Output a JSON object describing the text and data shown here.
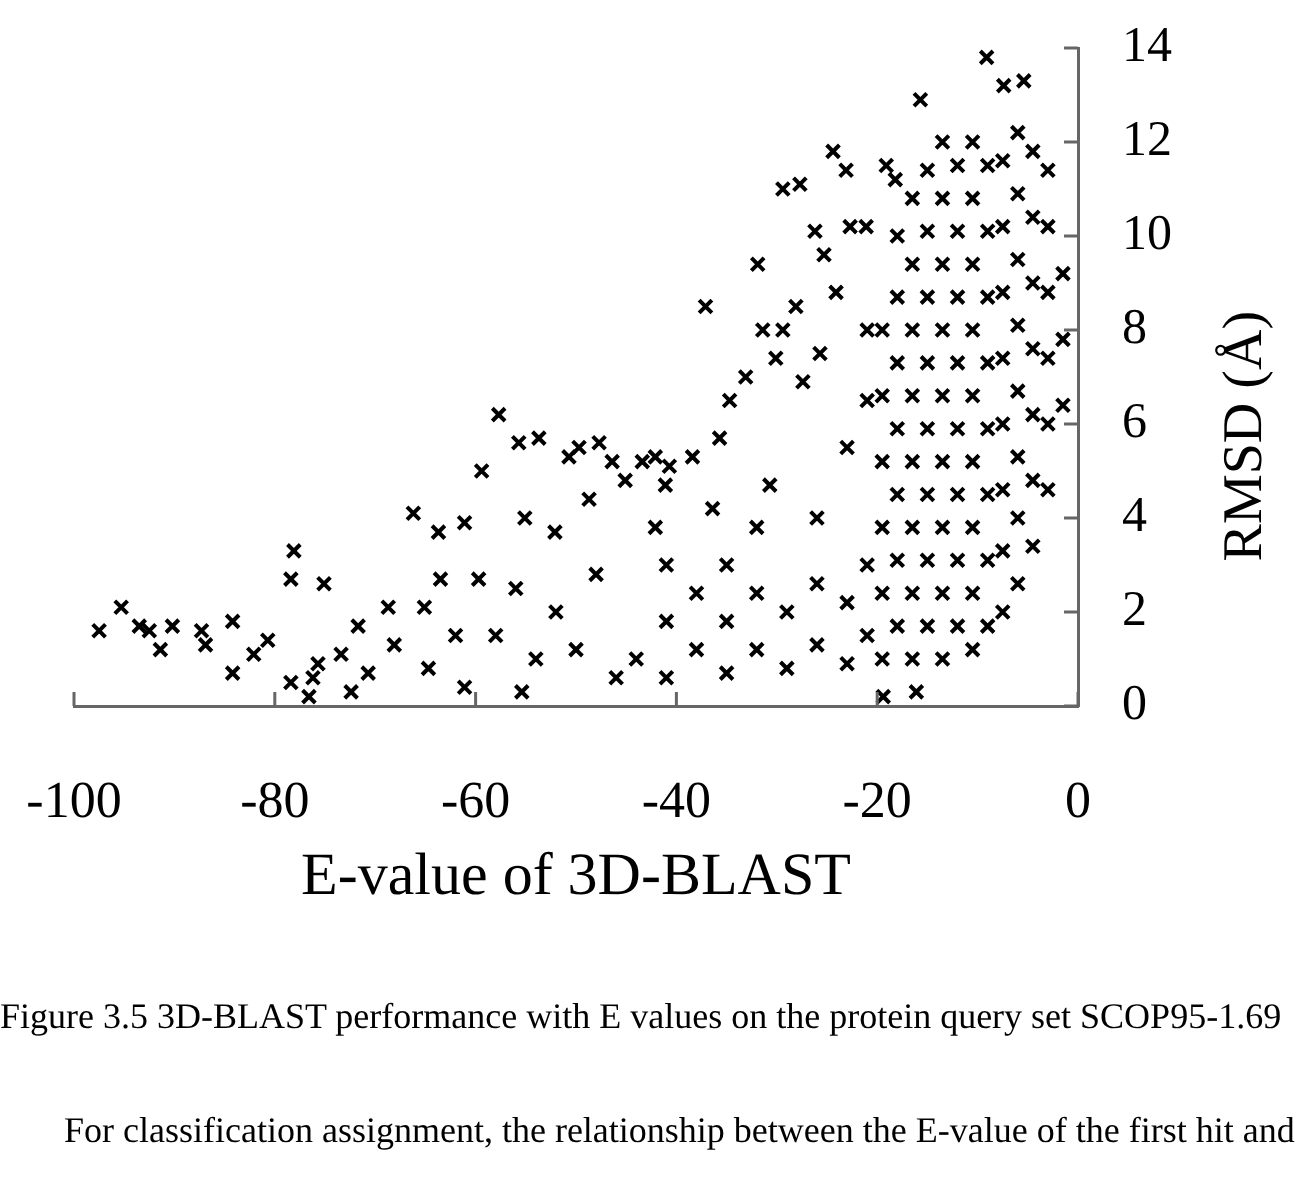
{
  "chart_data": {
    "type": "scatter",
    "xlabel": "E-value of 3D-BLAST",
    "ylabel": "RMSD (Å)",
    "xlim": [
      -100,
      0
    ],
    "xticks": [
      -100,
      -80,
      -60,
      -40,
      -20,
      0
    ],
    "ylim": [
      0,
      14
    ],
    "yticks": [
      0,
      2,
      4,
      6,
      8,
      10,
      12,
      14
    ],
    "marker": "cross",
    "color": "#000000",
    "x": [
      -97.5,
      -95.3,
      -93.5,
      -92.5,
      -91.4,
      -90.2,
      -87.3,
      -86.9,
      -84.2,
      -84.2,
      -82.1,
      -80.7,
      -78.4,
      -78.1,
      -78.4,
      -76.6,
      -76.2,
      -75.7,
      -75.1,
      -73.4,
      -72.4,
      -71.7,
      -70.7,
      -68.7,
      -68.1,
      -66.2,
      -65.1,
      -63.7,
      -63.5,
      -64.7,
      -61.1,
      -61.1,
      -59.7,
      -59.4,
      -57.7,
      -55.7,
      -55.1,
      -53.7,
      -55.4,
      -52.1,
      -50.7,
      -49.7,
      -48.7,
      -47.7,
      -46.4,
      -45.1,
      -43.4,
      -42.1,
      -41.1,
      -58,
      -56,
      -54,
      -52,
      -50,
      -48,
      -46,
      -62,
      -9.1,
      -15.7,
      -7.4,
      -5.4,
      -24.4,
      -23.1,
      -29.4,
      -27.7,
      -19.1,
      -18.2,
      -26.2,
      -25.3,
      -22.7,
      -21.1,
      -31.9,
      -37.1,
      -31.4,
      -29.4,
      -28.1,
      -25.7,
      -24.1,
      -30.1,
      -33.1,
      -34.7,
      -27.4,
      -35.7,
      -30.7,
      -36.4,
      -40.7,
      -38.4,
      -42.1,
      -19.4,
      -16.1,
      -44,
      -41,
      -41,
      -41,
      -38,
      -38,
      -35,
      -35,
      -35,
      -32,
      -32,
      -32,
      -29,
      -29,
      -26,
      -26,
      -26,
      -23,
      -23,
      -23,
      -21,
      -21,
      -21,
      -21,
      -19.5,
      -19.5,
      -19.5,
      -19.5,
      -19.5,
      -19.5,
      -18,
      -18,
      -18,
      -18,
      -18,
      -18,
      -18,
      -16.5,
      -16.5,
      -16.5,
      -16.5,
      -16.5,
      -16.5,
      -16.5,
      -16.5,
      -15,
      -15,
      -15,
      -15,
      -15,
      -15,
      -15,
      -15,
      -13.5,
      -13.5,
      -13.5,
      -13.5,
      -13.5,
      -13.5,
      -13.5,
      -13.5,
      -13.5,
      -12,
      -12,
      -12,
      -12,
      -12,
      -12,
      -12,
      -12,
      -10.5,
      -10.5,
      -10.5,
      -10.5,
      -10.5,
      -10.5,
      -10.5,
      -10.5,
      -10.5,
      -9,
      -9,
      -9,
      -9,
      -9,
      -9,
      -9,
      -9,
      -7.5,
      -7.5,
      -7.5,
      -7.5,
      -7.5,
      -7.5,
      -7.5,
      -7.5,
      -6,
      -6,
      -6,
      -6,
      -6,
      -6,
      -6,
      -6,
      -4.5,
      -4.5,
      -4.5,
      -4.5,
      -4.5,
      -4.5,
      -4.5,
      -3,
      -3,
      -3,
      -3,
      -3,
      -3,
      -1.5,
      -1.5,
      -1.5
    ],
    "values": [
      1.6,
      2.1,
      1.7,
      1.6,
      1.2,
      1.7,
      1.6,
      1.3,
      1.8,
      0.7,
      1.1,
      1.4,
      2.7,
      3.3,
      0.5,
      0.2,
      0.6,
      0.9,
      2.6,
      1.1,
      0.3,
      1.7,
      0.7,
      2.1,
      1.3,
      4.1,
      2.1,
      3.7,
      2.7,
      0.8,
      3.9,
      0.4,
      2.7,
      5.0,
      6.2,
      5.6,
      4.0,
      5.7,
      0.3,
      3.7,
      5.3,
      5.5,
      4.4,
      5.6,
      5.2,
      4.8,
      5.2,
      5.3,
      4.7,
      1.5,
      2.5,
      1.0,
      2.0,
      1.2,
      2.8,
      0.6,
      1.5,
      13.8,
      12.9,
      13.2,
      13.3,
      11.8,
      11.4,
      11.0,
      11.1,
      11.5,
      11.2,
      10.1,
      9.6,
      10.2,
      10.2,
      9.4,
      8.5,
      8.0,
      8.0,
      8.5,
      7.5,
      8.8,
      7.4,
      7.0,
      6.5,
      6.9,
      5.7,
      4.7,
      4.2,
      5.1,
      5.3,
      3.8,
      0.2,
      0.3,
      1.0,
      0.6,
      1.8,
      3.0,
      1.2,
      2.4,
      0.7,
      1.8,
      3.0,
      1.2,
      2.4,
      3.8,
      0.8,
      2.0,
      1.3,
      2.6,
      4.0,
      0.9,
      2.2,
      5.5,
      1.5,
      3.0,
      6.5,
      8.0,
      1.0,
      2.4,
      3.8,
      5.2,
      6.6,
      8.0,
      1.7,
      3.1,
      4.5,
      5.9,
      7.3,
      8.7,
      10.0,
      1.0,
      2.4,
      3.8,
      5.2,
      6.6,
      8.0,
      9.4,
      10.8,
      1.7,
      3.1,
      4.5,
      5.9,
      7.3,
      8.7,
      10.1,
      11.4,
      1.0,
      2.4,
      3.8,
      5.2,
      6.6,
      8.0,
      9.4,
      10.8,
      12.0,
      1.7,
      3.1,
      4.5,
      5.9,
      7.3,
      8.7,
      10.1,
      11.5,
      1.2,
      2.4,
      3.8,
      5.2,
      6.6,
      8.0,
      9.4,
      10.8,
      12.0,
      1.7,
      3.1,
      4.5,
      5.9,
      7.3,
      8.7,
      10.1,
      11.5,
      2.0,
      3.3,
      4.6,
      6.0,
      7.4,
      8.8,
      10.2,
      11.6,
      2.6,
      4.0,
      5.3,
      6.7,
      8.1,
      9.5,
      10.9,
      12.2,
      3.4,
      4.8,
      6.2,
      7.6,
      9.0,
      10.4,
      11.8,
      4.6,
      6.0,
      7.4,
      8.8,
      10.2,
      11.4,
      6.4,
      7.8,
      9.2
    ],
    "annotations": [
      "Figure 3.5 3D-BLAST performance with E values on the protein query set SCOP95-1.69",
      "For classification assignment, the relationship between the E-value of the first hit and"
    ]
  }
}
